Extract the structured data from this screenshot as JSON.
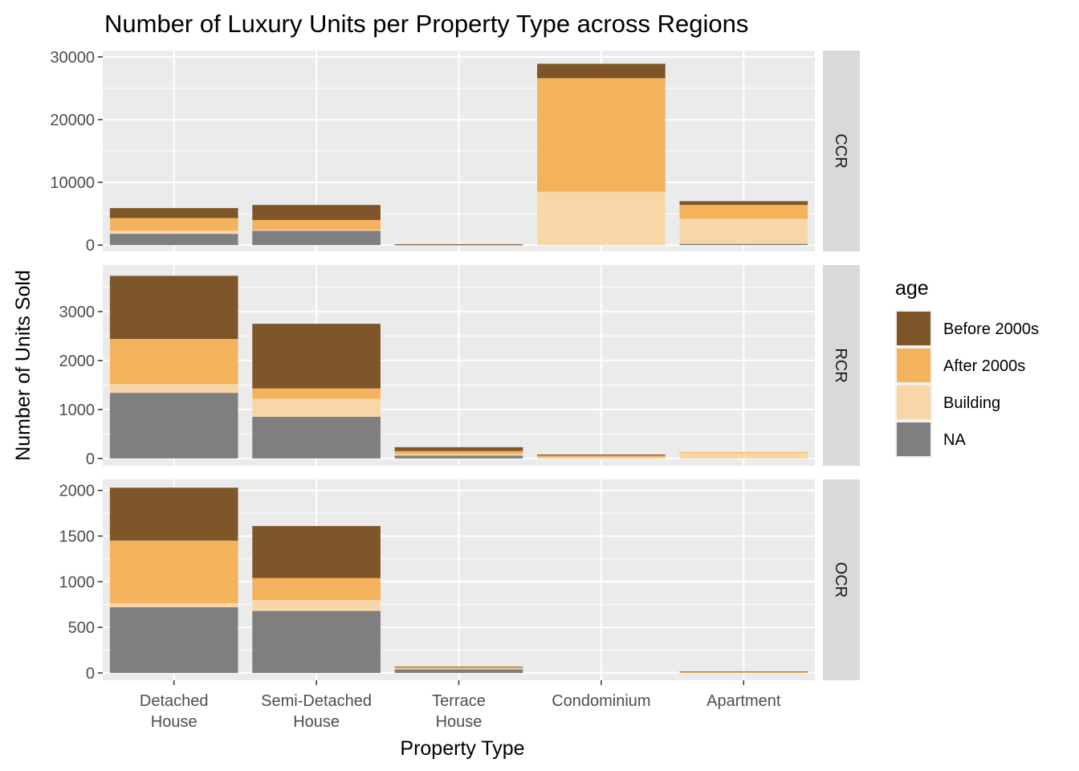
{
  "chart_data": {
    "type": "bar",
    "stacked": true,
    "faceted": "rows",
    "title": "Number of Luxury Units per Property Type across Regions",
    "xlabel": "Property Type",
    "ylabel": "Number of Units Sold",
    "categories": [
      "Detached\nHouse",
      "Semi-Detached\nHouse",
      "Terrace\nHouse",
      "Condominium",
      "Apartment"
    ],
    "legend": {
      "title": "age",
      "placement": "right",
      "entries": [
        {
          "name": "Before 2000s",
          "color": "#7F5629"
        },
        {
          "name": "After 2000s",
          "color": "#F5B25C"
        },
        {
          "name": "Building",
          "color": "#F9D6A8"
        },
        {
          "name": "NA",
          "color": "#7F7F7F"
        }
      ]
    },
    "stack_order_bottom_to_top": [
      "NA",
      "Building",
      "After 2000s",
      "Before 2000s"
    ],
    "panels": [
      {
        "region": "CCR",
        "ylim": [
          -1000,
          31000
        ],
        "yticks": [
          0,
          10000,
          20000,
          30000
        ],
        "series": [
          {
            "name": "NA",
            "values": [
              1800,
              2300,
              60,
              0,
              200
            ]
          },
          {
            "name": "Building",
            "values": [
              500,
              150,
              0,
              8500,
              4000
            ]
          },
          {
            "name": "After 2000s",
            "values": [
              2000,
              1550,
              0,
              18100,
              2200
            ]
          },
          {
            "name": "Before 2000s",
            "values": [
              1600,
              2400,
              80,
              2300,
              600
            ]
          }
        ]
      },
      {
        "region": "RCR",
        "ylim": [
          -150,
          3950
        ],
        "yticks": [
          0,
          1000,
          2000,
          3000
        ],
        "series": [
          {
            "name": "NA",
            "values": [
              1340,
              850,
              60,
              0,
              0
            ]
          },
          {
            "name": "Building",
            "values": [
              180,
              370,
              30,
              20,
              110
            ]
          },
          {
            "name": "After 2000s",
            "values": [
              920,
              210,
              60,
              40,
              20
            ]
          },
          {
            "name": "Before 2000s",
            "values": [
              1290,
              1320,
              80,
              20,
              0
            ]
          }
        ]
      },
      {
        "region": "OCR",
        "ylim": [
          -80,
          2120
        ],
        "yticks": [
          0,
          500,
          1000,
          1500,
          2000
        ],
        "series": [
          {
            "name": "NA",
            "values": [
              720,
              680,
              40,
              0,
              0
            ]
          },
          {
            "name": "Building",
            "values": [
              45,
              120,
              10,
              0,
              5
            ]
          },
          {
            "name": "After 2000s",
            "values": [
              685,
              240,
              15,
              0,
              5
            ]
          },
          {
            "name": "Before 2000s",
            "values": [
              580,
              570,
              5,
              0,
              5
            ]
          }
        ]
      }
    ],
    "grid": true
  }
}
